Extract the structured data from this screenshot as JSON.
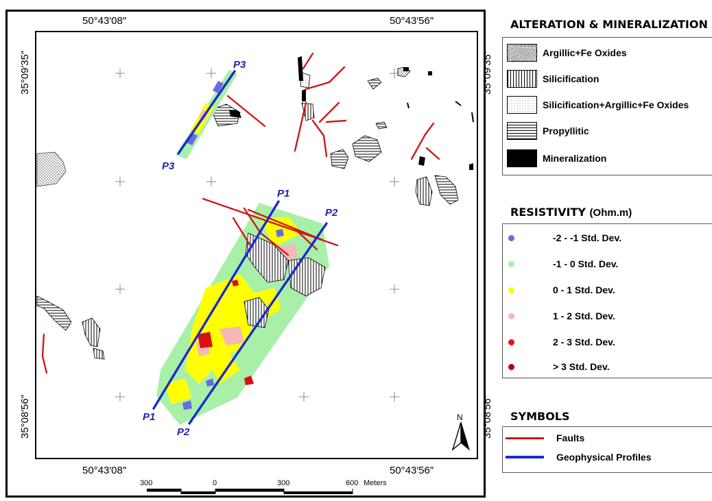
{
  "coords": {
    "top_left": "50°43′08″",
    "top_right": "50°43′56″",
    "bottom_left": "50°43′08″",
    "bottom_right": "50°43′56″",
    "left_top": "35°09′35″",
    "left_bottom": "35°08′56″",
    "right_top": "35°09′35″",
    "right_bottom": "35°08′56″"
  },
  "profiles": {
    "p1_top": "P1",
    "p1_bottom": "P1",
    "p2_top": "P2",
    "p2_bottom": "P2",
    "p3_top": "P3",
    "p3_bottom": "P3"
  },
  "north_label": "N",
  "legend": {
    "alteration": {
      "title": "ALTERATION & MINERALIZATION",
      "items": [
        {
          "label": "Argillic+Fe Oxides"
        },
        {
          "label": "Silicification"
        },
        {
          "label": "Silicification+Argillic+Fe Oxides"
        },
        {
          "label": "Propyllitic"
        },
        {
          "label": "Mineralization"
        }
      ]
    },
    "resistivity": {
      "title": "RESISTIVITY",
      "unit": "(Ohm.m)",
      "items": [
        {
          "label": "-2 - -1 Std. Dev.",
          "color": "#6b6be0"
        },
        {
          "label": "-1 - 0 Std. Dev.",
          "color": "#a8f0a8"
        },
        {
          "label": "0 - 1 Std. Dev.",
          "color": "#ffff00"
        },
        {
          "label": "1 - 2 Std. Dev.",
          "color": "#f4b8b8"
        },
        {
          "label": "2 - 3 Std. Dev.",
          "color": "#e8101a"
        },
        {
          "label": "> 3 Std. Dev.",
          "color": "#c00000"
        }
      ]
    },
    "symbols": {
      "title": "SYMBOLS",
      "items": [
        {
          "label": "Faults",
          "color": "#d01818"
        },
        {
          "label": "Geophysical Profiles",
          "color": "#1a2ad0"
        }
      ]
    }
  },
  "scale": {
    "labels": [
      "300",
      "0",
      "300",
      "600"
    ],
    "unit": "Meters"
  }
}
